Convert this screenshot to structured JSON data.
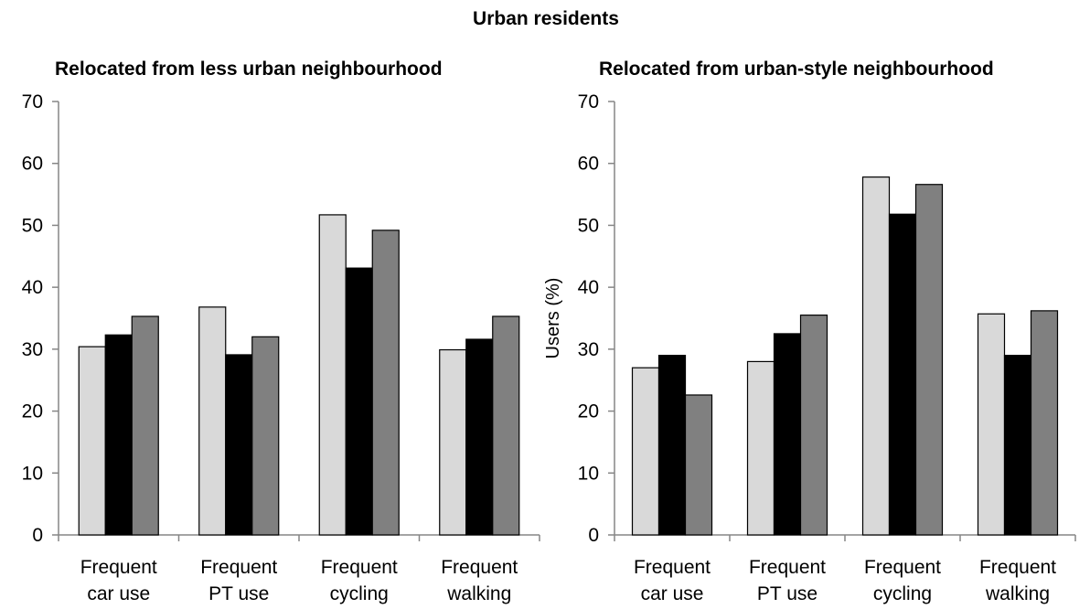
{
  "figure_title": "Urban residents",
  "chart_data": [
    {
      "type": "bar",
      "title": "Relocated from less urban neighbourhood",
      "xlabel": "",
      "ylabel": "",
      "ylim": [
        0,
        70
      ],
      "yticks": [
        "0",
        "10",
        "20",
        "30",
        "40",
        "50",
        "60",
        "70"
      ],
      "categories": [
        [
          "Frequent",
          "car use"
        ],
        [
          "Frequent",
          "PT use"
        ],
        [
          "Frequent",
          "cycling"
        ],
        [
          "Frequent",
          "walking"
        ]
      ],
      "series": [
        {
          "color": "#d9d9d9",
          "values": [
            30.4,
            36.8,
            51.7,
            29.9
          ]
        },
        {
          "color": "#000000",
          "values": [
            32.3,
            29.1,
            43.1,
            31.6
          ]
        },
        {
          "color": "#808080",
          "values": [
            35.3,
            32.0,
            49.2,
            35.3
          ]
        }
      ],
      "grid": false,
      "legend": "none"
    },
    {
      "type": "bar",
      "title": "Relocated from urban-style neighbourhood",
      "xlabel": "",
      "ylabel": "Users (%)",
      "ylim": [
        0,
        70
      ],
      "yticks": [
        "0",
        "10",
        "20",
        "30",
        "40",
        "50",
        "60",
        "70"
      ],
      "categories": [
        [
          "Frequent",
          "car use"
        ],
        [
          "Frequent",
          "PT use"
        ],
        [
          "Frequent",
          "cycling"
        ],
        [
          "Frequent",
          "walking"
        ]
      ],
      "series": [
        {
          "color": "#d9d9d9",
          "values": [
            27.0,
            28.0,
            57.8,
            35.7
          ]
        },
        {
          "color": "#000000",
          "values": [
            29.0,
            32.5,
            51.8,
            29.0
          ]
        },
        {
          "color": "#808080",
          "values": [
            22.6,
            35.5,
            56.6,
            36.2
          ]
        }
      ],
      "grid": false,
      "legend": "none"
    }
  ]
}
